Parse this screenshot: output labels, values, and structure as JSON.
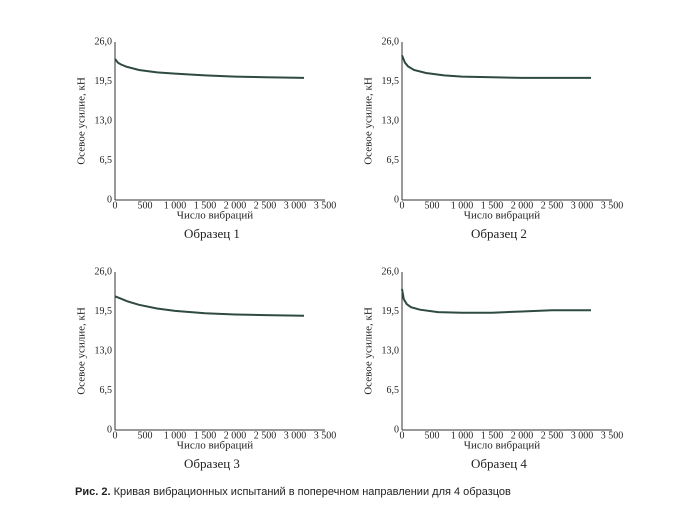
{
  "chart_data": [
    {
      "type": "line",
      "title": "Образец 1",
      "xlabel": "Число вибраций",
      "ylabel": "Осевое усилие, кН",
      "color": "#2f4a40",
      "x": [
        0,
        50,
        100,
        200,
        400,
        700,
        1000,
        1500,
        2000,
        2500,
        3150
      ],
      "values": [
        23.2,
        22.6,
        22.3,
        21.9,
        21.4,
        21.0,
        20.8,
        20.5,
        20.3,
        20.2,
        20.1
      ],
      "xlim": [
        0,
        3500
      ],
      "ylim": [
        0,
        26
      ],
      "xticks": [
        0,
        500,
        {
          "value": 1000,
          "label": "1 000"
        },
        {
          "value": 1500,
          "label": "1 500"
        },
        {
          "value": 2000,
          "label": "2 000"
        },
        {
          "value": 2500,
          "label": "2 500"
        },
        {
          "value": 3000,
          "label": "3 000"
        },
        {
          "value": 3500,
          "label": "3 500"
        }
      ],
      "yticks": [
        0,
        {
          "value": 6.5,
          "label": "6,5"
        },
        {
          "value": 13,
          "label": "13,0"
        },
        {
          "value": 19.5,
          "label": "19,5"
        },
        {
          "value": 26,
          "label": "26,0"
        }
      ]
    },
    {
      "type": "line",
      "title": "Образец 2",
      "xlabel": "Число вибраций",
      "ylabel": "Осевое усилие, кН",
      "color": "#2f4a40",
      "x": [
        0,
        50,
        100,
        200,
        400,
        700,
        1000,
        1500,
        2000,
        2500,
        3150
      ],
      "values": [
        23.8,
        22.6,
        22.0,
        21.4,
        20.9,
        20.5,
        20.3,
        20.2,
        20.1,
        20.1,
        20.1
      ],
      "xlim": [
        0,
        3500
      ],
      "ylim": [
        0,
        26
      ],
      "xticks": [
        0,
        500,
        {
          "value": 1000,
          "label": "1 000"
        },
        {
          "value": 1500,
          "label": "1 500"
        },
        {
          "value": 2000,
          "label": "2 000"
        },
        {
          "value": 2500,
          "label": "2 500"
        },
        {
          "value": 3000,
          "label": "3 000"
        },
        {
          "value": 3500,
          "label": "3 500"
        }
      ],
      "yticks": [
        0,
        {
          "value": 6.5,
          "label": "6,5"
        },
        {
          "value": 13,
          "label": "13,0"
        },
        {
          "value": 19.5,
          "label": "19,5"
        },
        {
          "value": 26,
          "label": "26,0"
        }
      ]
    },
    {
      "type": "line",
      "title": "Образец 3",
      "xlabel": "Число вибраций",
      "ylabel": "Осевое усилие, кН",
      "color": "#2f4a40",
      "x": [
        0,
        100,
        200,
        400,
        700,
        1000,
        1500,
        2000,
        2500,
        3150
      ],
      "values": [
        22.0,
        21.6,
        21.2,
        20.6,
        20.0,
        19.6,
        19.2,
        19.0,
        18.9,
        18.8
      ],
      "xlim": [
        0,
        3500
      ],
      "ylim": [
        0,
        26
      ],
      "xticks": [
        0,
        500,
        {
          "value": 1000,
          "label": "1 000"
        },
        {
          "value": 1500,
          "label": "1 500"
        },
        {
          "value": 2000,
          "label": "2 000"
        },
        {
          "value": 2500,
          "label": "2 500"
        },
        {
          "value": 3000,
          "label": "3 000"
        },
        {
          "value": 3500,
          "label": "3 500"
        }
      ],
      "yticks": [
        0,
        {
          "value": 6.5,
          "label": "6,5"
        },
        {
          "value": 13,
          "label": "13,0"
        },
        {
          "value": 19.5,
          "label": "19,5"
        },
        {
          "value": 26,
          "label": "26,0"
        }
      ]
    },
    {
      "type": "line",
      "title": "Образец 4",
      "xlabel": "Число вибраций",
      "ylabel": "Осевое усилие, кН",
      "color": "#2f4a40",
      "x": [
        0,
        30,
        80,
        150,
        300,
        600,
        1000,
        1500,
        2000,
        2500,
        3150
      ],
      "values": [
        23.2,
        21.5,
        20.7,
        20.2,
        19.8,
        19.4,
        19.3,
        19.3,
        19.5,
        19.7,
        19.7
      ],
      "xlim": [
        0,
        3500
      ],
      "ylim": [
        0,
        26
      ],
      "xticks": [
        0,
        500,
        {
          "value": 1000,
          "label": "1 000"
        },
        {
          "value": 1500,
          "label": "1 500"
        },
        {
          "value": 2000,
          "label": "2 000"
        },
        {
          "value": 2500,
          "label": "2 500"
        },
        {
          "value": 3000,
          "label": "3 000"
        },
        {
          "value": 3500,
          "label": "3 500"
        }
      ],
      "yticks": [
        0,
        {
          "value": 6.5,
          "label": "6,5"
        },
        {
          "value": 13,
          "label": "13,0"
        },
        {
          "value": 19.5,
          "label": "19,5"
        },
        {
          "value": 26,
          "label": "26,0"
        }
      ]
    }
  ],
  "caption_label": "Рис. 2.",
  "caption_text": "Кривая вибрационных испытаний в поперечном направлении для 4 образцов"
}
